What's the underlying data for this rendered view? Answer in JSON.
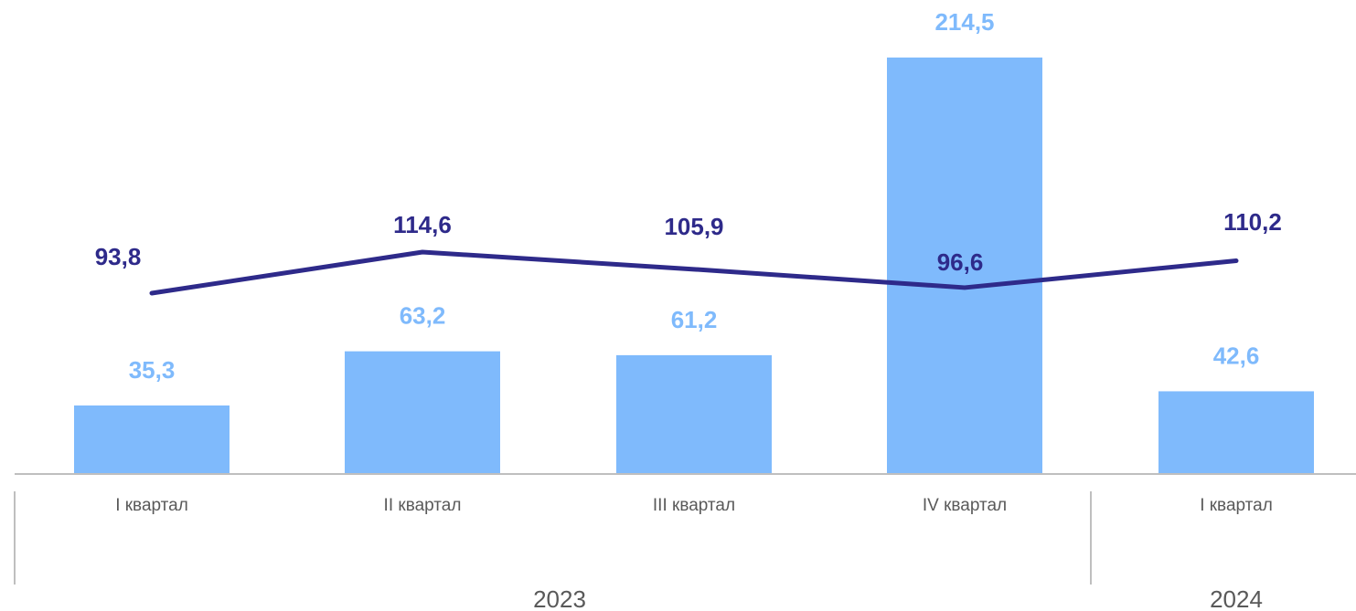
{
  "chart_data": {
    "type": "bar",
    "categories": [
      "I квартал",
      "II квартал",
      "III квартал",
      "IV квартал",
      "I квартал"
    ],
    "groups": [
      {
        "label": "2023",
        "count": 4
      },
      {
        "label": "2024",
        "count": 1
      }
    ],
    "series": [
      {
        "type": "bar",
        "values": [
          35.3,
          63.2,
          61.2,
          214.5,
          42.6
        ],
        "labels": [
          "35,3",
          "63,2",
          "61,2",
          "214,5",
          "42,6"
        ],
        "color": "#7fbafc"
      },
      {
        "type": "line",
        "values": [
          93.8,
          114.6,
          105.9,
          96.6,
          110.2
        ],
        "labels": [
          "93,8",
          "114,6",
          "105,9",
          "96,6",
          "110,2"
        ],
        "color": "#2e2a8a"
      }
    ],
    "title": "",
    "xlabel": "",
    "ylabel": "",
    "legend": "none",
    "grid": false
  }
}
